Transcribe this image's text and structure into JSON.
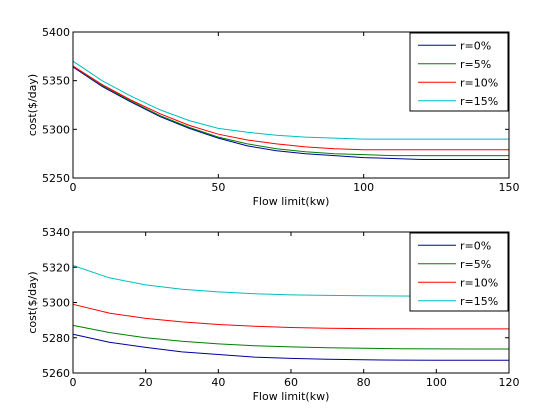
{
  "chart_data": [
    {
      "type": "line",
      "title": "",
      "xlabel": "Flow limit(kw)",
      "ylabel": "cost($/day)",
      "xlim": [
        0,
        150
      ],
      "ylim": [
        5250,
        5400
      ],
      "xticks": [
        0,
        50,
        100,
        150
      ],
      "yticks": [
        5250,
        5300,
        5350,
        5400
      ],
      "grid": false,
      "legend_position": "top-right",
      "x": [
        0,
        10,
        20,
        30,
        40,
        50,
        60,
        70,
        80,
        90,
        100,
        110,
        120,
        130,
        140,
        150
      ],
      "series": [
        {
          "name": "r=0%",
          "color": "#0000a0",
          "values": [
            5364,
            5344,
            5328,
            5313,
            5301,
            5291,
            5283,
            5278,
            5275,
            5273,
            5271,
            5270,
            5269,
            5269,
            5269,
            5269
          ]
        },
        {
          "name": "r=5%",
          "color": "#007f00",
          "values": [
            5365,
            5345,
            5329,
            5314,
            5302,
            5292,
            5285,
            5280,
            5277,
            5275,
            5274,
            5273,
            5273,
            5273,
            5273,
            5273
          ]
        },
        {
          "name": "r=10%",
          "color": "#ff0000",
          "values": [
            5365,
            5346,
            5330,
            5316,
            5304,
            5295,
            5289,
            5285,
            5282,
            5280,
            5279,
            5279,
            5279,
            5279,
            5279,
            5279
          ]
        },
        {
          "name": "r=15%",
          "color": "#00bfbf",
          "values": [
            5370,
            5350,
            5334,
            5320,
            5309,
            5301,
            5297,
            5294,
            5292,
            5291,
            5290,
            5290,
            5290,
            5290,
            5290,
            5290
          ]
        }
      ]
    },
    {
      "type": "line",
      "title": "",
      "xlabel": "Flow limit(kw)",
      "ylabel": "cost($/day)",
      "xlim": [
        0,
        120
      ],
      "ylim": [
        5260,
        5340
      ],
      "xticks": [
        0,
        20,
        40,
        60,
        80,
        100,
        120
      ],
      "yticks": [
        5260,
        5280,
        5300,
        5320,
        5340
      ],
      "grid": false,
      "legend_position": "top-right",
      "x": [
        0,
        10,
        20,
        30,
        40,
        50,
        60,
        70,
        80,
        90,
        100,
        110,
        120
      ],
      "series": [
        {
          "name": "r=0%",
          "color": "#0000a0",
          "values": [
            5282,
            5277.5,
            5274.5,
            5272,
            5270.5,
            5269,
            5268.3,
            5267.8,
            5267.5,
            5267.3,
            5267.2,
            5267.2,
            5267.2
          ]
        },
        {
          "name": "r=5%",
          "color": "#007f00",
          "values": [
            5287,
            5283,
            5280,
            5278,
            5276.5,
            5275.5,
            5274.8,
            5274.3,
            5274,
            5273.8,
            5273.7,
            5273.6,
            5273.6
          ]
        },
        {
          "name": "r=10%",
          "color": "#ff0000",
          "values": [
            5299,
            5294,
            5291,
            5289,
            5287.5,
            5286.5,
            5285.8,
            5285.4,
            5285.2,
            5285.1,
            5285,
            5285,
            5285
          ]
        },
        {
          "name": "r=15%",
          "color": "#00bfbf",
          "values": [
            5321,
            5314,
            5310,
            5307.5,
            5306,
            5305,
            5304.3,
            5304,
            5303.8,
            5303.7,
            5303.6,
            5303.6,
            5303.6
          ]
        }
      ]
    }
  ]
}
